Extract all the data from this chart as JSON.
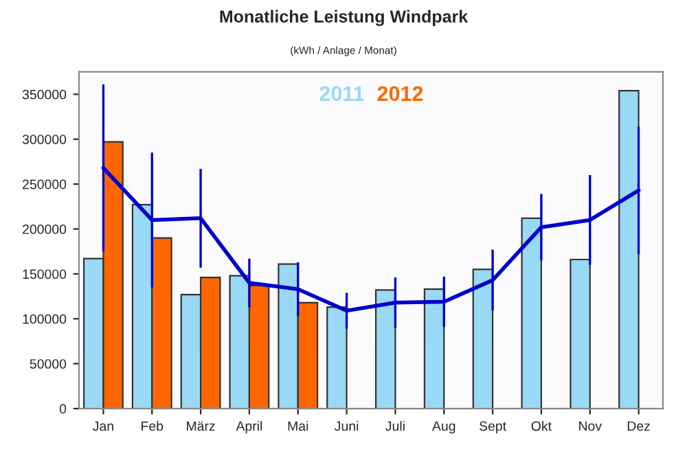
{
  "chart_data": {
    "type": "bar",
    "title": "Monatliche Leistung Windpark",
    "subtitle": "(kWh / Anlage / Monat)",
    "categories": [
      "Jan",
      "Feb",
      "März",
      "April",
      "Mai",
      "Juni",
      "Juli",
      "Aug",
      "Sept",
      "Okt",
      "Nov",
      "Dez"
    ],
    "series": [
      {
        "name": "2011",
        "color": "#99d9f5",
        "values": [
          167000,
          227000,
          127000,
          148000,
          161000,
          113000,
          132000,
          133000,
          155000,
          212000,
          166000,
          354000
        ]
      },
      {
        "name": "2012",
        "color": "#ff6600",
        "values": [
          297000,
          190000,
          146000,
          137000,
          118000,
          null,
          null,
          null,
          null,
          null,
          null,
          null
        ]
      },
      {
        "type": "line",
        "color": "#0000cc",
        "values": [
          268000,
          210000,
          212000,
          140000,
          133000,
          109000,
          118000,
          119000,
          143000,
          202000,
          210000,
          243000
        ],
        "errors": [
          93000,
          75000,
          55000,
          27000,
          30000,
          20000,
          28000,
          28000,
          34000,
          37000,
          50000,
          71000
        ]
      }
    ],
    "ylim": [
      0,
      375000
    ],
    "yticks": [
      0,
      50000,
      100000,
      150000,
      200000,
      250000,
      300000,
      350000
    ],
    "grid": false,
    "legend": "top"
  }
}
